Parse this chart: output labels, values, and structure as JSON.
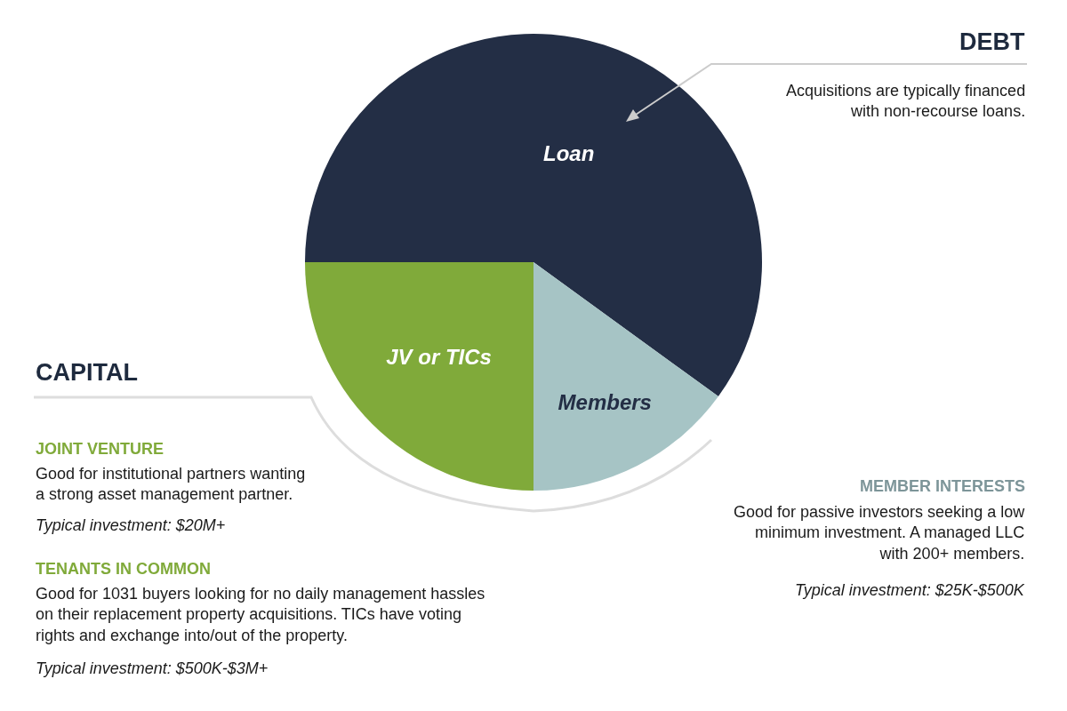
{
  "chart_data": {
    "type": "pie",
    "categories": [
      "Loan",
      "Members",
      "JV or TICs"
    ],
    "values": [
      60,
      15,
      25
    ],
    "colors": [
      "#232e45",
      "#a6c4c5",
      "#80aa3a"
    ],
    "legend": false,
    "annotations": [
      "DEBT",
      "Acquisitions are typically financed\nwith non-recourse loans.",
      "CAPITAL",
      "JOINT VENTURE",
      "Good for institutional partners wanting\na strong asset management partner.",
      "Typical investment: $20M+",
      "TENANTS IN COMMON",
      "Good for 1031 buyers looking for no daily management hassles\non their replacement property acquisitions. TICs have voting\nrights and exchange into/out of the property.",
      "Typical investment: $500K-$3M+",
      "MEMBER INTERESTS",
      "Good for passive investors seeking a low\nminimum investment. A managed LLC\nwith 200+ members.",
      "Typical investment: $25K-$500K"
    ]
  }
}
